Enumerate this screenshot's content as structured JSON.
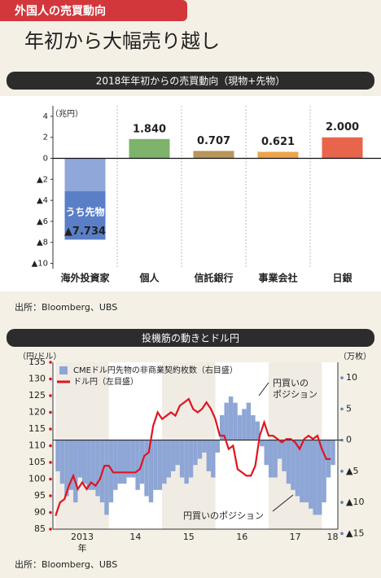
{
  "header": {
    "tag": "外国人の売買動向",
    "title": "年初から大幅売り越し"
  },
  "chart_data": [
    {
      "type": "bar",
      "title": "2018年年初からの売買動向（現物+先物）",
      "unit_label": "（兆円）",
      "categories": [
        "海外投資家",
        "個人",
        "信託銀行",
        "事業会社",
        "日銀"
      ],
      "values": [
        -7.734,
        1.84,
        0.707,
        0.621,
        2.0
      ],
      "value_labels": [
        "▲7.734",
        "1.840",
        "0.707",
        "0.621",
        "2.000"
      ],
      "colors": [
        "#8fa7d9",
        "#7db36a",
        "#b8955a",
        "#eda34c",
        "#e8654b"
      ],
      "futures": {
        "label": "うち先物",
        "value": -4.6,
        "color": "#5b7fc6"
      },
      "ylim": [
        -10.5,
        5
      ],
      "yticks": [
        4,
        2,
        0,
        {
          "value": -2,
          "label": "▲2"
        },
        {
          "value": -4,
          "label": "▲4"
        },
        {
          "value": -6,
          "label": "▲6"
        },
        {
          "value": -8,
          "label": "▲8"
        },
        {
          "value": -10,
          "label": "▲10"
        }
      ],
      "source": "出所：Bloomberg、UBS"
    },
    {
      "type": "combo",
      "title": "投機筋の動きとドル円",
      "y_label": "（円/ドル）",
      "y2_label": "（万枚）",
      "x_unit": "年",
      "x": [
        2013,
        2013.083,
        2013.167,
        2013.25,
        2013.333,
        2013.417,
        2013.5,
        2013.583,
        2013.667,
        2013.75,
        2013.833,
        2013.917,
        2014,
        2014.083,
        2014.167,
        2014.25,
        2014.333,
        2014.417,
        2014.5,
        2014.583,
        2014.667,
        2014.75,
        2014.833,
        2014.917,
        2015,
        2015.083,
        2015.167,
        2015.25,
        2015.333,
        2015.417,
        2015.5,
        2015.583,
        2015.667,
        2015.75,
        2015.833,
        2015.917,
        2016,
        2016.083,
        2016.167,
        2016.25,
        2016.333,
        2016.417,
        2016.5,
        2016.583,
        2016.667,
        2016.75,
        2016.833,
        2016.917,
        2017,
        2017.083,
        2017.167,
        2017.25,
        2017.333,
        2017.417,
        2017.5,
        2017.583,
        2017.667,
        2017.75,
        2017.833,
        2017.917,
        2018,
        2018.083,
        2018.167
      ],
      "series": [
        {
          "name": "CMEドル円先物の非商業契約枚数（右目盛）",
          "type": "bar",
          "axis": "y2",
          "color": "#8ea6d6",
          "values": [
            -5,
            -7,
            -9,
            -8,
            -10,
            -6,
            -7,
            -8,
            -8,
            -9,
            -10,
            -12,
            -10,
            -8,
            -7,
            -7,
            -6,
            -6,
            -8,
            -7,
            -9,
            -10,
            -8,
            -8,
            -7,
            -6,
            -5,
            -4,
            -6,
            -7,
            -6,
            -4,
            -3,
            -2,
            -5,
            -6,
            -2,
            4,
            6,
            7,
            6,
            4,
            5,
            6,
            4,
            3,
            -1,
            -4,
            -6,
            -6,
            -3,
            -5,
            -7,
            -8,
            -9,
            -10,
            -10,
            -11,
            -12,
            -12,
            -10,
            -6,
            -4
          ]
        },
        {
          "name": "ドル円（左目盛）",
          "type": "line",
          "color": "#e0141e",
          "values": [
            89,
            93,
            94,
            98,
            101,
            97,
            99,
            97,
            99,
            98,
            100,
            104,
            104,
            102,
            102,
            102,
            102,
            102,
            102,
            103,
            107,
            108,
            116,
            120,
            118,
            119,
            120,
            119,
            122,
            123,
            124,
            121,
            120,
            121,
            123,
            121,
            118,
            113,
            113,
            109,
            110,
            103,
            102,
            101,
            101,
            104,
            113,
            117,
            113,
            113,
            112,
            111,
            112,
            112,
            111,
            109,
            112,
            113,
            112,
            113,
            109,
            106,
            106
          ]
        }
      ],
      "xlim": [
        2012.95,
        2018.3
      ],
      "xticks": [
        {
          "value": 2013.5,
          "label": "2013"
        },
        {
          "value": 2014.5,
          "label": "14"
        },
        {
          "value": 2015.5,
          "label": "15"
        },
        {
          "value": 2016.5,
          "label": "16"
        },
        {
          "value": 2017.5,
          "label": "17"
        },
        {
          "value": 2018.2,
          "label": "18"
        }
      ],
      "ylim": [
        85,
        135
      ],
      "yticks": [
        85,
        90,
        95,
        100,
        105,
        110,
        115,
        120,
        125,
        130,
        135
      ],
      "y2lim": [
        -14.3,
        12.5
      ],
      "y2ticks": [
        10,
        5,
        0,
        {
          "value": -5,
          "label": "▲5"
        },
        {
          "value": -10,
          "label": "▲10"
        },
        {
          "value": -15,
          "label": "▲15"
        }
      ],
      "annotations": [
        {
          "lines": [
            "円買いの",
            "ポジション"
          ]
        },
        {
          "lines": [
            "円買いのポジション"
          ]
        }
      ],
      "source": "出所：Bloomberg、UBS"
    }
  ]
}
